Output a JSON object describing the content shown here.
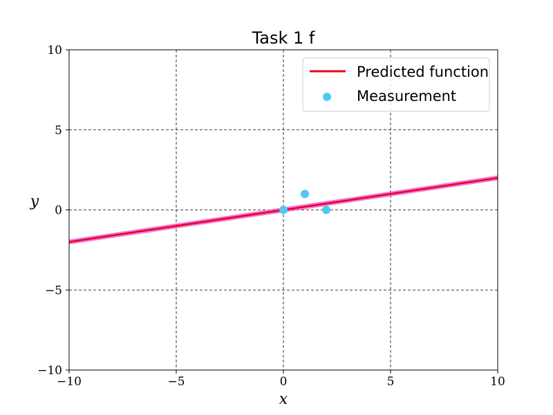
{
  "chart_data": {
    "type": "line",
    "title": "Task 1 f",
    "xlabel": "x",
    "ylabel": "y",
    "xlim": [
      -10,
      10
    ],
    "ylim": [
      -10,
      10
    ],
    "xticks": [
      -10,
      -5,
      0,
      5,
      10
    ],
    "yticks": [
      -10,
      -5,
      0,
      5,
      10
    ],
    "grid": true,
    "legend_position": "top-right",
    "series": [
      {
        "name": "Predicted function",
        "kind": "line",
        "color": "#e8001c",
        "band_color": "#ee44cc",
        "x": [
          -10,
          10
        ],
        "y": [
          -2,
          2
        ]
      },
      {
        "name": "Measurement",
        "kind": "scatter",
        "color": "#4ec9f5",
        "x": [
          0,
          1,
          2
        ],
        "y": [
          0,
          1,
          0
        ]
      }
    ]
  }
}
